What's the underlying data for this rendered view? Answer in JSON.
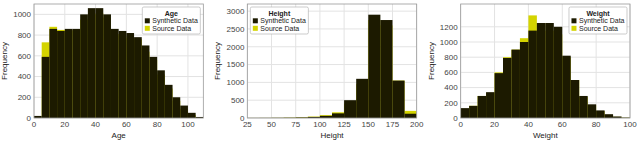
{
  "chart_data": [
    {
      "type": "histogram",
      "title": "Age",
      "xlabel": "Age",
      "ylabel": "Frequency",
      "xlim": [
        0,
        110
      ],
      "ylim": [
        0,
        1100
      ],
      "xticks": [
        0,
        20,
        40,
        60,
        80,
        100
      ],
      "yticks": [
        0,
        200,
        400,
        600,
        800,
        1000
      ],
      "grid": true,
      "legend": "upper right",
      "bins": [
        0,
        5,
        10,
        15,
        20,
        25,
        30,
        35,
        40,
        45,
        50,
        55,
        60,
        65,
        70,
        75,
        80,
        85,
        90,
        95,
        100,
        105,
        110
      ],
      "series": [
        {
          "name": "Synthetic Data",
          "color": "#1c1a00",
          "values": [
            20,
            590,
            860,
            840,
            860,
            860,
            1000,
            1060,
            1060,
            1000,
            860,
            840,
            820,
            780,
            700,
            590,
            460,
            320,
            200,
            120,
            50,
            10
          ]
        },
        {
          "name": "Source Data",
          "color": "#d4d400",
          "values": [
            10,
            730,
            880,
            850,
            850,
            840,
            950,
            1000,
            1010,
            970,
            810,
            790,
            770,
            760,
            640,
            560,
            420,
            285,
            165,
            85,
            30,
            5
          ]
        }
      ]
    },
    {
      "type": "histogram",
      "title": "Height",
      "xlabel": "Height",
      "ylabel": "Frequency",
      "xlim": [
        25,
        200
      ],
      "ylim": [
        0,
        3200
      ],
      "xticks": [
        25,
        50,
        75,
        100,
        125,
        150,
        175,
        200
      ],
      "yticks": [
        0,
        500,
        1000,
        1500,
        2000,
        2500,
        3000
      ],
      "grid": true,
      "legend": "upper left",
      "bins": [
        25,
        37.5,
        50,
        62.5,
        75,
        87.5,
        100,
        112.5,
        125,
        137.5,
        150,
        162.5,
        175,
        187.5,
        200
      ],
      "series": [
        {
          "name": "Synthetic Data",
          "color": "#1c1a00",
          "values": [
            2,
            3,
            5,
            8,
            15,
            30,
            60,
            130,
            500,
            1100,
            2900,
            2750,
            1050,
            120
          ]
        },
        {
          "name": "Source Data",
          "color": "#d4d400",
          "values": [
            2,
            3,
            5,
            10,
            20,
            40,
            80,
            160,
            400,
            950,
            2750,
            2600,
            1050,
            200
          ]
        }
      ]
    },
    {
      "type": "histogram",
      "title": "Weight",
      "xlabel": "Weight",
      "ylabel": "Frequency",
      "xlim": [
        0,
        100
      ],
      "ylim": [
        0,
        1500
      ],
      "xticks": [
        0,
        20,
        40,
        60,
        80,
        100
      ],
      "yticks": [
        0,
        200,
        400,
        600,
        800,
        1000,
        1200
      ],
      "grid": true,
      "legend": "upper right",
      "bins": [
        0,
        5,
        10,
        15,
        20,
        25,
        30,
        35,
        40,
        45,
        50,
        55,
        60,
        65,
        70,
        75,
        80,
        85,
        90,
        95,
        100
      ],
      "series": [
        {
          "name": "Synthetic Data",
          "color": "#1c1a00",
          "values": [
            130,
            160,
            290,
            340,
            590,
            790,
            900,
            1000,
            1150,
            1250,
            1250,
            1200,
            820,
            500,
            290,
            180,
            100,
            50,
            20,
            5
          ]
        },
        {
          "name": "Source Data",
          "color": "#d4d400",
          "values": [
            120,
            160,
            290,
            330,
            600,
            800,
            900,
            1050,
            1350,
            1250,
            1150,
            1100,
            800,
            500,
            280,
            170,
            90,
            40,
            15,
            3
          ]
        }
      ]
    }
  ]
}
